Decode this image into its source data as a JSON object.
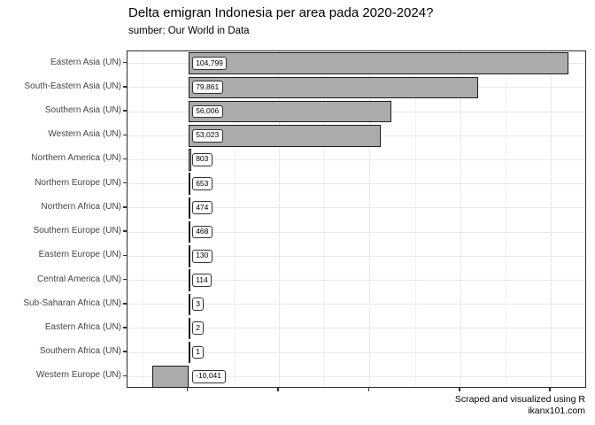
{
  "title": "Delta emigran Indonesia per area pada 2020-2024?",
  "subtitle": "sumber: Our World in Data",
  "caption": {
    "line1": "Scraped and visualized using R",
    "line2": "ikanx101.com"
  },
  "colors": {
    "bar_fill": "#ababab",
    "bar_border": "#1c1c1c",
    "panel_border": "#2b2b2b",
    "grid_major": "#e9e9e9",
    "grid_minor": "#f2f2f2",
    "axis_text": "#444444",
    "label_box_bg": "#ffffff",
    "label_box_border": "#333333"
  },
  "chart_data": {
    "type": "bar",
    "orientation": "horizontal",
    "title": "Delta emigran Indonesia per area pada 2020-2024?",
    "subtitle": "sumber: Our World in Data",
    "caption": "Scraped and visualized using R — ikanx101.com",
    "categories": [
      "Eastern Asia (UN)",
      "South-Eastern Asia (UN)",
      "Southern Asia (UN)",
      "Western Asia (UN)",
      "Northern America (UN)",
      "Northern Europe (UN)",
      "Northern Africa (UN)",
      "Southern Europe (UN)",
      "Eastern Europe (UN)",
      "Central America (UN)",
      "Sub-Saharan Africa (UN)",
      "Eastern Africa (UN)",
      "Southern Africa (UN)",
      "Western Europe (UN)"
    ],
    "values": [
      104799,
      79861,
      56006,
      53023,
      803,
      653,
      474,
      468,
      130,
      114,
      3,
      2,
      1,
      -10041
    ],
    "value_labels": [
      "104,799",
      "79,861",
      "56,006",
      "53,023",
      "803",
      "653",
      "474",
      "468",
      "130",
      "114",
      "3",
      "2",
      "1",
      "-10,041"
    ],
    "xlabel": "",
    "ylabel": "",
    "xlim": [
      -16772,
      109950
    ],
    "x_major_ticks": [
      0,
      25000,
      50000,
      75000,
      100000
    ],
    "x_minor_ticks": [
      -12500,
      12500,
      37500,
      62500,
      87500
    ],
    "x_tick_labels_shown": false,
    "grid": true,
    "legend": "none"
  }
}
